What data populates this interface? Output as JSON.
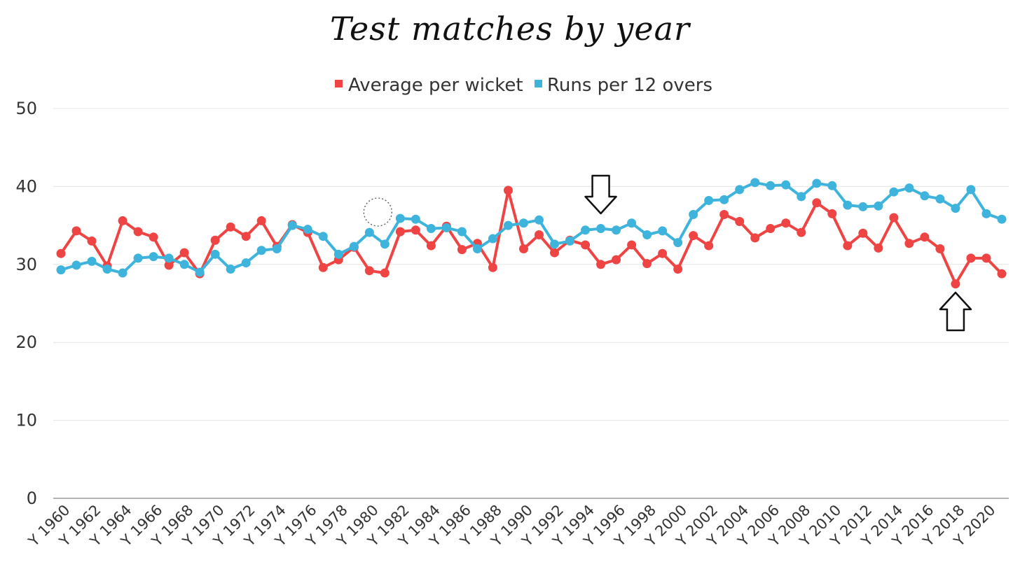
{
  "chart_data": {
    "type": "line",
    "title": "Test matches by year",
    "xlabel": "",
    "ylabel": "",
    "ylim": [
      0,
      50
    ],
    "yticks": [
      0,
      10,
      20,
      30,
      40,
      50
    ],
    "grid": true,
    "legend_position": "top-center",
    "categories": [
      "Y 1960",
      "Y 1961",
      "Y 1962",
      "Y 1963",
      "Y 1964",
      "Y 1965",
      "Y 1966",
      "Y 1967",
      "Y 1968",
      "Y 1969",
      "Y 1970",
      "Y 1971",
      "Y 1972",
      "Y 1973",
      "Y 1974",
      "Y 1975",
      "Y 1976",
      "Y 1977",
      "Y 1978",
      "Y 1979",
      "Y 1980",
      "Y 1981",
      "Y 1982",
      "Y 1983",
      "Y 1984",
      "Y 1985",
      "Y 1986",
      "Y 1987",
      "Y 1988",
      "Y 1989",
      "Y 1990",
      "Y 1991",
      "Y 1992",
      "Y 1993",
      "Y 1994",
      "Y 1995",
      "Y 1996",
      "Y 1997",
      "Y 1998",
      "Y 1999",
      "Y 2000",
      "Y 2001",
      "Y 2002",
      "Y 2003",
      "Y 2004",
      "Y 2005",
      "Y 2006",
      "Y 2007",
      "Y 2008",
      "Y 2009",
      "Y 2010",
      "Y 2011",
      "Y 2012",
      "Y 2013",
      "Y 2014",
      "Y 2015",
      "Y 2016",
      "Y 2017",
      "Y 2018",
      "Y 2019",
      "Y 2020",
      "Y 2021"
    ],
    "xtick_labels": [
      "Y 1960",
      "Y 1962",
      "Y 1964",
      "Y 1966",
      "Y 1968",
      "Y 1970",
      "Y 1972",
      "Y 1974",
      "Y 1976",
      "Y 1978",
      "Y 1980",
      "Y 1982",
      "Y 1984",
      "Y 1986",
      "Y 1988",
      "Y 1990",
      "Y 1992",
      "Y 1994",
      "Y 1996",
      "Y 1998",
      "Y 2000",
      "Y 2002",
      "Y 2004",
      "Y 2006",
      "Y 2008",
      "Y 2010",
      "Y 2012",
      "Y 2014",
      "Y 2016",
      "Y 2018",
      "Y 2020"
    ],
    "series": [
      {
        "name": "Average per wicket",
        "color": "#ef4444",
        "values": [
          31.4,
          34.3,
          33.0,
          29.8,
          35.6,
          34.2,
          33.5,
          29.9,
          31.5,
          28.8,
          33.1,
          34.8,
          33.6,
          35.6,
          32.3,
          35.1,
          34.1,
          29.6,
          30.6,
          32.2,
          29.2,
          28.9,
          34.2,
          34.4,
          32.4,
          34.9,
          31.9,
          32.7,
          29.6,
          39.5,
          32.0,
          33.8,
          31.5,
          33.1,
          32.5,
          30.0,
          30.6,
          32.5,
          30.1,
          31.4,
          29.4,
          33.7,
          32.4,
          36.4,
          35.5,
          33.4,
          34.6,
          35.3,
          34.1,
          37.9,
          36.5,
          32.4,
          34.0,
          32.1,
          36.0,
          32.7,
          33.5,
          32.0,
          27.5,
          30.8,
          30.8,
          28.8
        ]
      },
      {
        "name": "Runs per 12 overs",
        "color": "#3eb4dc",
        "values": [
          29.3,
          29.9,
          30.4,
          29.4,
          28.9,
          30.8,
          31.0,
          30.8,
          30.0,
          29.0,
          31.3,
          29.4,
          30.2,
          31.8,
          32.0,
          35.0,
          34.5,
          33.6,
          31.3,
          32.3,
          34.1,
          32.6,
          35.9,
          35.8,
          34.6,
          34.7,
          34.2,
          32.0,
          33.3,
          35.0,
          35.3,
          35.7,
          32.6,
          33.0,
          34.4,
          34.6,
          34.4,
          35.3,
          33.8,
          34.3,
          32.8,
          36.4,
          38.2,
          38.3,
          39.6,
          40.5,
          40.1,
          40.2,
          38.7,
          40.4,
          40.1,
          37.6,
          37.4,
          37.5,
          39.3,
          39.8,
          38.8,
          38.4,
          37.2,
          39.6,
          36.5,
          35.8
        ]
      }
    ],
    "annotations": [
      {
        "type": "arrow-down",
        "near": "Y 1995"
      },
      {
        "type": "arrow-up",
        "near": "Y 2018"
      },
      {
        "type": "dotted-circle",
        "near": "Y 1981"
      }
    ]
  }
}
